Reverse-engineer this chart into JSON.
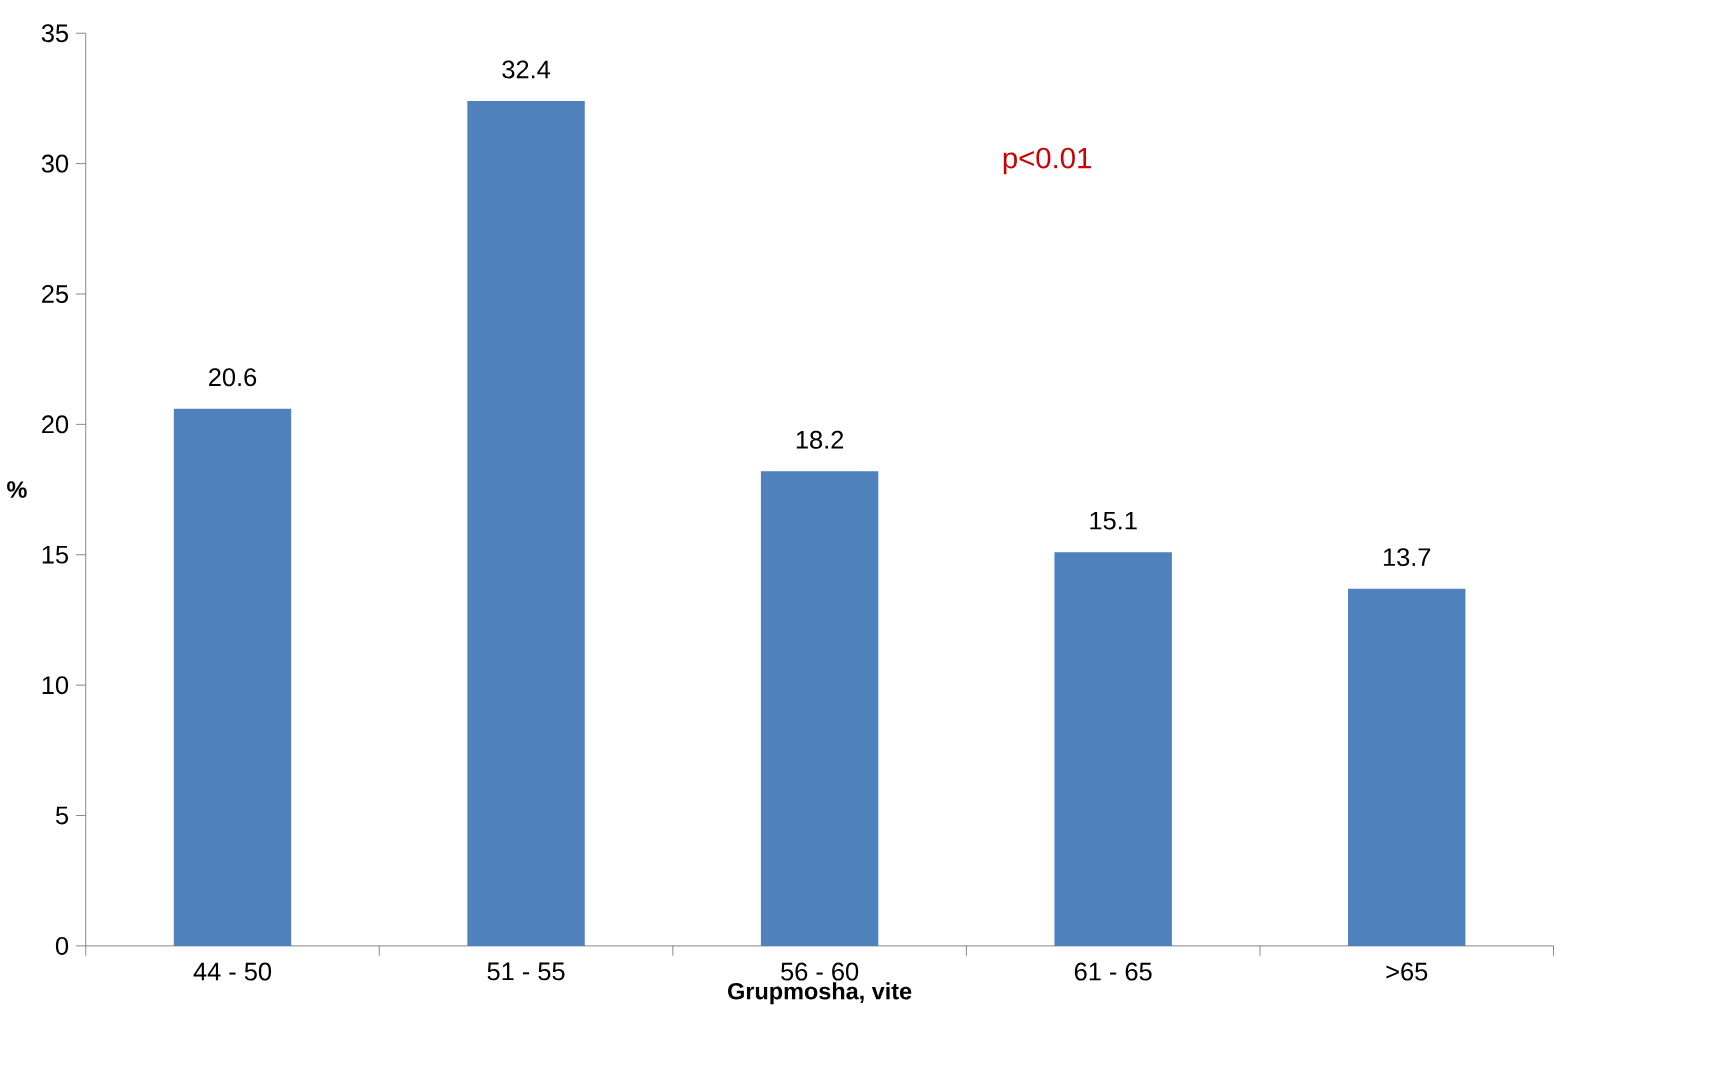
{
  "chart_data": {
    "type": "bar",
    "categories": [
      "44 - 50",
      "51 - 55",
      "56 - 60",
      "61 - 65",
      ">65"
    ],
    "values": [
      20.6,
      32.4,
      18.2,
      15.1,
      13.7
    ],
    "color": "#4f81bd",
    "xlabel": "Grupmosha, vite",
    "ylabel": "%",
    "ylim": [
      0,
      35
    ],
    "yticks": [
      0,
      5,
      10,
      15,
      20,
      25,
      30,
      35
    ],
    "data_labels": true,
    "annotations": [
      "p<0.01"
    ],
    "grid": false
  }
}
